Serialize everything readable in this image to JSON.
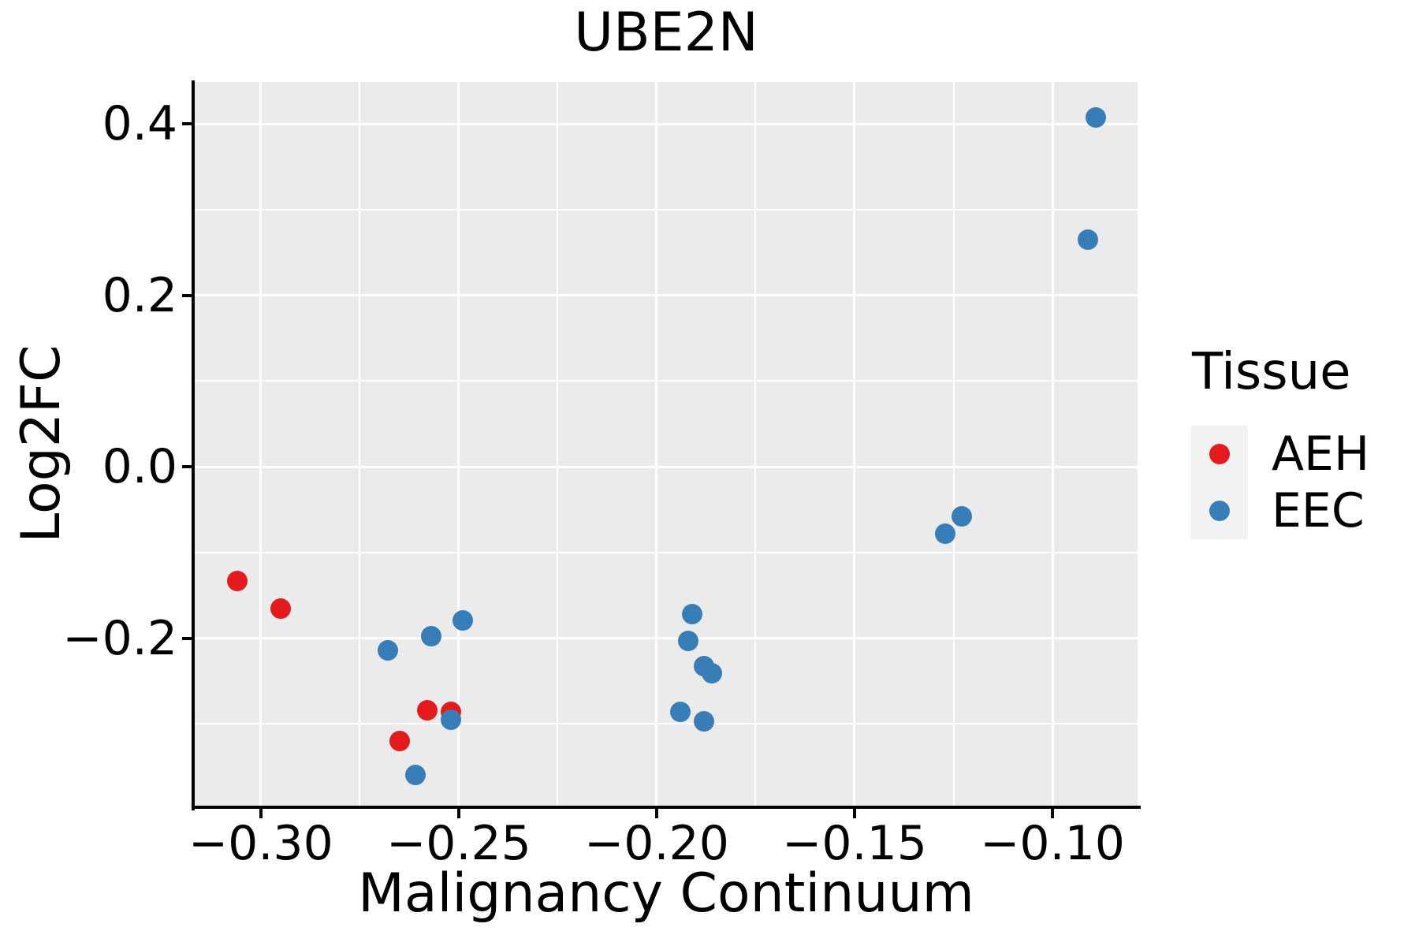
{
  "title": "UBE2N",
  "x_axis": {
    "label": "Malignancy Continuum",
    "tick_labels": [
      "−0.30",
      "−0.25",
      "−0.20",
      "−0.15",
      "−0.10"
    ],
    "tick_values": [
      -0.3,
      -0.25,
      -0.2,
      -0.15,
      -0.1
    ]
  },
  "y_axis": {
    "label": "Log2FC",
    "tick_labels": [
      "0.4",
      "0.2",
      "0.0",
      "−0.2"
    ],
    "tick_values": [
      0.4,
      0.2,
      0.0,
      -0.2
    ]
  },
  "legend": {
    "title": "Tissue",
    "items": [
      {
        "label": "AEH",
        "color": "#E41A1C"
      },
      {
        "label": "EEC",
        "color": "#377EB8"
      }
    ]
  },
  "colors": {
    "panel_background": "#EBEBEB",
    "gridline": "#FFFFFF",
    "axis": "#000000",
    "legend_key_background": "#F2F2F2",
    "aeh": "#E41A1C",
    "eec": "#377EB8"
  },
  "chart_data": {
    "type": "scatter",
    "title": "UBE2N",
    "xlabel": "Malignancy Continuum",
    "ylabel": "Log2FC",
    "xlim": [
      -0.3167,
      -0.0785
    ],
    "ylim": [
      -0.3953,
      0.4488
    ],
    "grid": "white major and minor gridlines on gray panel",
    "legend_position": "right",
    "series": [
      {
        "name": "AEH",
        "color": "#E41A1C",
        "points": [
          [
            -0.306,
            -0.133
          ],
          [
            -0.295,
            -0.165
          ],
          [
            -0.258,
            -0.284
          ],
          [
            -0.252,
            -0.286
          ],
          [
            -0.265,
            -0.32
          ]
        ]
      },
      {
        "name": "EEC",
        "color": "#377EB8",
        "points": [
          [
            -0.089,
            0.407
          ],
          [
            -0.091,
            0.265
          ],
          [
            -0.123,
            -0.058
          ],
          [
            -0.127,
            -0.078
          ],
          [
            -0.268,
            -0.214
          ],
          [
            -0.257,
            -0.198
          ],
          [
            -0.249,
            -0.179
          ],
          [
            -0.252,
            -0.295
          ],
          [
            -0.261,
            -0.359
          ],
          [
            -0.191,
            -0.172
          ],
          [
            -0.192,
            -0.203
          ],
          [
            -0.188,
            -0.233
          ],
          [
            -0.186,
            -0.241
          ],
          [
            -0.194,
            -0.286
          ],
          [
            -0.188,
            -0.297
          ]
        ]
      }
    ]
  }
}
